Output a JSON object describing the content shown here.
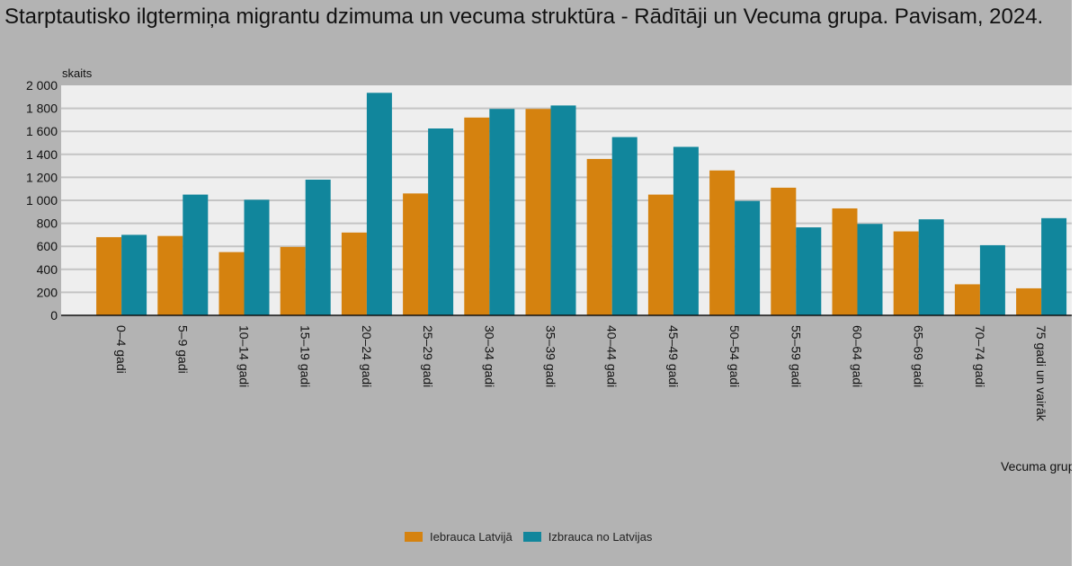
{
  "title": "Starptautisko ilgtermiņa migrantu dzimuma un vecuma struktūra - Rādītāji un Vecuma grupa. Pavisam, 2024.",
  "colors": {
    "background": "#b3b3b3",
    "plot_background": "#eeeeee",
    "series1": "#d5820f",
    "series2": "#11869c"
  },
  "chart_data": {
    "type": "bar",
    "title": "Starptautisko ilgtermiņa migrantu dzimuma un vecuma struktūra - Rādītāji un Vecuma grupa. Pavisam, 2024.",
    "ylabel": "skaits",
    "xlabel": "Vecuma grupa",
    "ylim": [
      0,
      2000
    ],
    "yticks": [
      "0",
      "200",
      "400",
      "600",
      "800",
      "1 000",
      "1 200",
      "1 400",
      "1 600",
      "1 800",
      "2 000"
    ],
    "grid": true,
    "legend_position": "bottom",
    "categories": [
      "0–4 gadi",
      "5–9 gadi",
      "10–14 gadi",
      "15–19 gadi",
      "20–24 gadi",
      "25–29 gadi",
      "30–34 gadi",
      "35–39 gadi",
      "40–44 gadi",
      "45–49 gadi",
      "50–54 gadi",
      "55–59 gadi",
      "60–64 gadi",
      "65–69 gadi",
      "70–74 gadi",
      "75 gadi un vairāk"
    ],
    "series": [
      {
        "name": "Iebrauca Latvijā",
        "color": "#d5820f",
        "values": [
          680,
          690,
          550,
          595,
          720,
          1060,
          1720,
          1795,
          1360,
          1050,
          1260,
          1110,
          930,
          730,
          270,
          235
        ]
      },
      {
        "name": "Izbrauca no Latvijas",
        "color": "#11869c",
        "values": [
          700,
          1050,
          1005,
          1180,
          1935,
          1625,
          1795,
          1825,
          1550,
          1465,
          995,
          765,
          795,
          835,
          610,
          845
        ]
      }
    ]
  }
}
